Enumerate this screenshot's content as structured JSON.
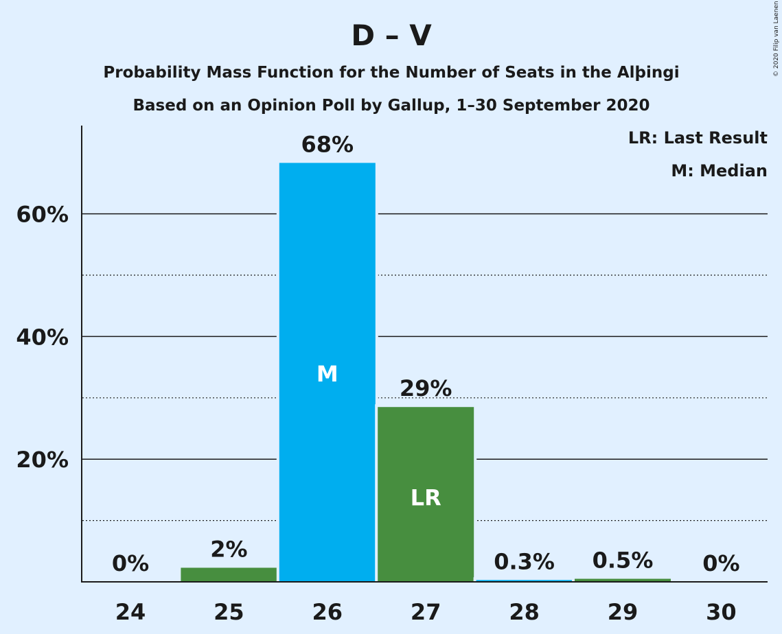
{
  "title": "D – V",
  "subtitle_line1": "Probability Mass Function for the Number of Seats in the Alþingi",
  "subtitle_line2": "Based on an Opinion Poll by Gallup, 1–30 September 2020",
  "legend": {
    "lr": "LR: Last Result",
    "m": "M: Median"
  },
  "credit": "© 2020 Filip van Laenen",
  "colors": {
    "background": "#e1f0ff",
    "median_bar": "#00aeef",
    "other_bar": "#478e3f",
    "text": "#1a1a1a"
  },
  "chart_data": {
    "type": "bar",
    "categories": [
      "24",
      "25",
      "26",
      "27",
      "28",
      "29",
      "30"
    ],
    "values": [
      0,
      2.3,
      68.3,
      28.5,
      0.3,
      0.5,
      0
    ],
    "value_labels": [
      "0%",
      "2%",
      "68%",
      "29%",
      "0.3%",
      "0.5%",
      "0%"
    ],
    "bar_markers": [
      "",
      "",
      "M",
      "LR",
      "",
      "",
      ""
    ],
    "bar_colors": [
      "#478e3f",
      "#478e3f",
      "#00aeef",
      "#478e3f",
      "#00aeef",
      "#478e3f",
      "#478e3f"
    ],
    "ylim": [
      0,
      74
    ],
    "y_ticks_major": [
      20,
      40,
      60
    ],
    "y_tick_labels": [
      "20%",
      "40%",
      "60%"
    ],
    "y_grid_minor": [
      10,
      30,
      50
    ],
    "xlabel": "",
    "ylabel": "",
    "grid": true,
    "legend_position": "top-right"
  }
}
